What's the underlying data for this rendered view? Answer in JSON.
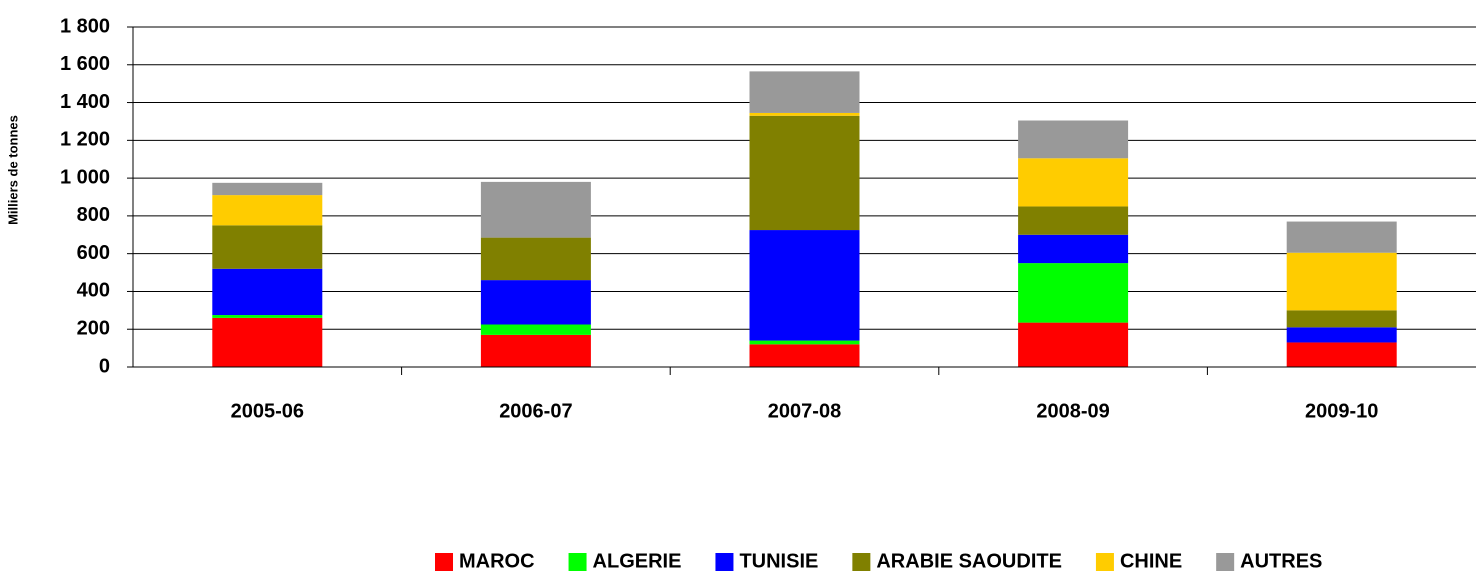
{
  "chart_data": {
    "type": "stacked_bar",
    "y_axis_label": "Milliers de tonnes",
    "categories": [
      "2005-06",
      "2006-07",
      "2007-08",
      "2008-09",
      "2009-10"
    ],
    "series": [
      {
        "name": "MAROC",
        "color": "#FF0000",
        "values": [
          260,
          170,
          120,
          235,
          130
        ]
      },
      {
        "name": "ALGERIE",
        "color": "#00FF00",
        "values": [
          15,
          55,
          20,
          315,
          0
        ]
      },
      {
        "name": "TUNISIE",
        "color": "#0000FF",
        "values": [
          245,
          235,
          585,
          150,
          80
        ]
      },
      {
        "name": "ARABIE SAOUDITE",
        "color": "#808000",
        "values": [
          230,
          225,
          605,
          150,
          90
        ]
      },
      {
        "name": "CHINE",
        "color": "#FFCC00",
        "values": [
          160,
          0,
          15,
          255,
          305
        ]
      },
      {
        "name": "AUTRES",
        "color": "#999999",
        "values": [
          65,
          295,
          220,
          200,
          165
        ]
      }
    ],
    "ylim": [
      0,
      1800
    ],
    "yticks": [
      0,
      200,
      400,
      600,
      800,
      {
        "value": 1000,
        "label": "1 000"
      },
      {
        "value": 1200,
        "label": "1 200"
      },
      {
        "value": 1400,
        "label": "1 400"
      },
      {
        "value": 1600,
        "label": "1 600"
      },
      {
        "value": 1800,
        "label": "1 800"
      }
    ],
    "grid": true,
    "legend": "bottom"
  }
}
